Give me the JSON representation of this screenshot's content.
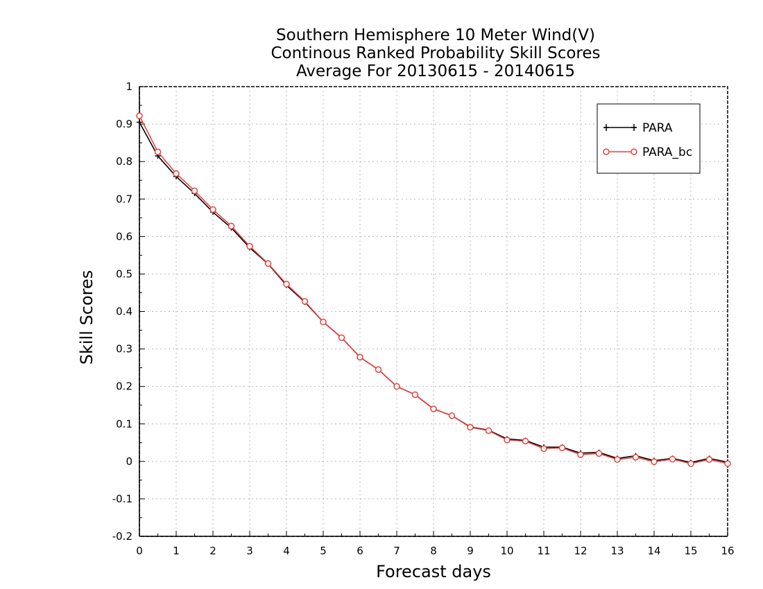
{
  "chart_data": {
    "type": "line",
    "title": [
      "Southern Hemisphere 10 Meter Wind(V)",
      "Continous Ranked Probability Skill Scores",
      "Average For 20130615 - 20140615"
    ],
    "xlabel": "Forecast days",
    "ylabel": "Skill Scores",
    "xlim": [
      0,
      16
    ],
    "ylim": [
      -0.2,
      1
    ],
    "x_ticks": [
      "0",
      "1",
      "2",
      "3",
      "4",
      "5",
      "6",
      "7",
      "8",
      "9",
      "10",
      "11",
      "12",
      "13",
      "14",
      "15",
      "16"
    ],
    "y_ticks": [
      "-0.2",
      "-0.1",
      "0",
      "0.1",
      "0.2",
      "0.3",
      "0.4",
      "0.5",
      "0.6",
      "0.7",
      "0.8",
      "0.9",
      "1"
    ],
    "grid": true,
    "legend_position": "top-right",
    "x": [
      0,
      0.5,
      1,
      1.5,
      2,
      2.5,
      3,
      3.5,
      4,
      4.5,
      5,
      5.5,
      6,
      6.5,
      7,
      7.5,
      8,
      8.5,
      9,
      9.5,
      10,
      10.5,
      11,
      11.5,
      12,
      12.5,
      13,
      13.5,
      14,
      14.5,
      15,
      15.5,
      16
    ],
    "series": [
      {
        "name": "PARA",
        "color": "#000000",
        "marker": "plus",
        "values": [
          0.905,
          0.815,
          0.76,
          0.715,
          0.665,
          0.623,
          0.57,
          0.527,
          0.47,
          0.425,
          0.372,
          0.33,
          0.278,
          0.245,
          0.2,
          0.178,
          0.14,
          0.122,
          0.092,
          0.083,
          0.06,
          0.056,
          0.038,
          0.038,
          0.022,
          0.024,
          0.008,
          0.015,
          0.002,
          0.008,
          -0.003,
          0.008,
          -0.002
        ]
      },
      {
        "name": "PARA_bc",
        "color": "#e8413c",
        "marker": "circle",
        "values": [
          0.922,
          0.826,
          0.768,
          0.722,
          0.672,
          0.628,
          0.574,
          0.528,
          0.473,
          0.427,
          0.372,
          0.33,
          0.278,
          0.245,
          0.2,
          0.178,
          0.14,
          0.122,
          0.091,
          0.082,
          0.057,
          0.054,
          0.034,
          0.036,
          0.018,
          0.021,
          0.005,
          0.011,
          -0.001,
          0.006,
          -0.006,
          0.005,
          -0.006
        ]
      }
    ]
  }
}
